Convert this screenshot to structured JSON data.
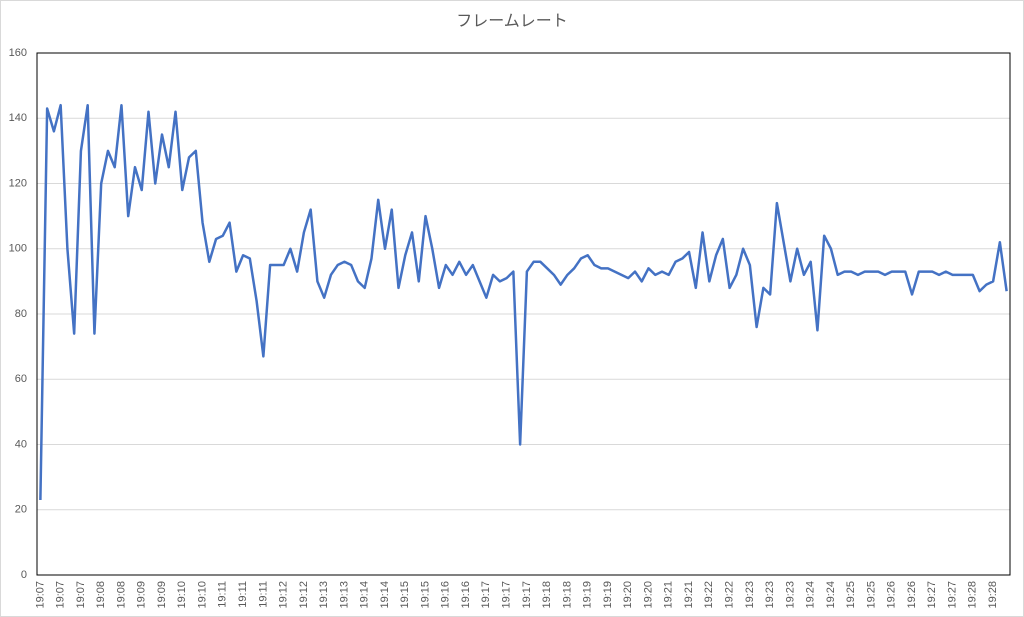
{
  "chart_data": {
    "type": "line",
    "title": "フレームレート",
    "categories": [
      "19:07",
      null,
      null,
      "19:07",
      null,
      null,
      "19:07",
      null,
      null,
      "19:08",
      null,
      null,
      "19:08",
      null,
      null,
      "19:09",
      null,
      null,
      "19:09",
      null,
      null,
      "19:10",
      null,
      null,
      "19:10",
      null,
      null,
      "19:11",
      null,
      null,
      "19:11",
      null,
      null,
      "19:11",
      null,
      null,
      "19:12",
      null,
      null,
      "19:12",
      null,
      null,
      "19:13",
      null,
      null,
      "19:13",
      null,
      null,
      "19:14",
      null,
      null,
      "19:14",
      null,
      null,
      "19:15",
      null,
      null,
      "19:15",
      null,
      null,
      "19:16",
      null,
      null,
      "19:16",
      null,
      null,
      "19:17",
      null,
      null,
      "19:17",
      null,
      null,
      "19:17",
      null,
      null,
      "19:18",
      null,
      null,
      "19:18",
      null,
      null,
      "19:19",
      null,
      null,
      "19:19",
      null,
      null,
      "19:20",
      null,
      null,
      "19:20",
      null,
      null,
      "19:21",
      null,
      null,
      "19:21",
      null,
      null,
      "19:22",
      null,
      null,
      "19:22",
      null,
      null,
      "19:23",
      null,
      null,
      "19:23",
      null,
      null,
      "19:23",
      null,
      null,
      "19:24",
      null,
      null,
      "19:24",
      null,
      null,
      "19:25",
      null,
      null,
      "19:25",
      null,
      null,
      "19:26",
      null,
      null,
      "19:26",
      null,
      null,
      "19:27",
      null,
      null,
      "19:27",
      null,
      null,
      "19:28",
      null,
      null,
      "19:28",
      null,
      null
    ],
    "series": [
      {
        "name": "フレームレート",
        "color": "#4472c4",
        "values": [
          23,
          143,
          136,
          144,
          100,
          74,
          130,
          144,
          74,
          120,
          130,
          125,
          144,
          110,
          125,
          118,
          142,
          120,
          135,
          125,
          142,
          118,
          128,
          130,
          108,
          96,
          103,
          104,
          108,
          93,
          98,
          97,
          84,
          67,
          95,
          95,
          95,
          100,
          93,
          105,
          112,
          90,
          85,
          92,
          95,
          96,
          95,
          90,
          88,
          97,
          115,
          100,
          112,
          88,
          98,
          105,
          90,
          110,
          100,
          88,
          95,
          92,
          96,
          92,
          95,
          90,
          85,
          92,
          90,
          91,
          93,
          40,
          93,
          96,
          96,
          94,
          92,
          89,
          92,
          94,
          97,
          98,
          95,
          94,
          94,
          93,
          92,
          91,
          93,
          90,
          94,
          92,
          93,
          92,
          96,
          97,
          99,
          88,
          105,
          90,
          98,
          103,
          88,
          92,
          100,
          95,
          76,
          88,
          86,
          114,
          102,
          90,
          100,
          92,
          96,
          75,
          104,
          100,
          92,
          93,
          93,
          92,
          93,
          93,
          93,
          92,
          93,
          93,
          93,
          86,
          93,
          93,
          93,
          92,
          93,
          92,
          92,
          92,
          92,
          87,
          89,
          90,
          102,
          87
        ]
      }
    ],
    "ylim": [
      0,
      160
    ],
    "yticks": [
      0,
      20,
      40,
      60,
      80,
      100,
      120,
      140,
      160
    ],
    "grid": true
  }
}
